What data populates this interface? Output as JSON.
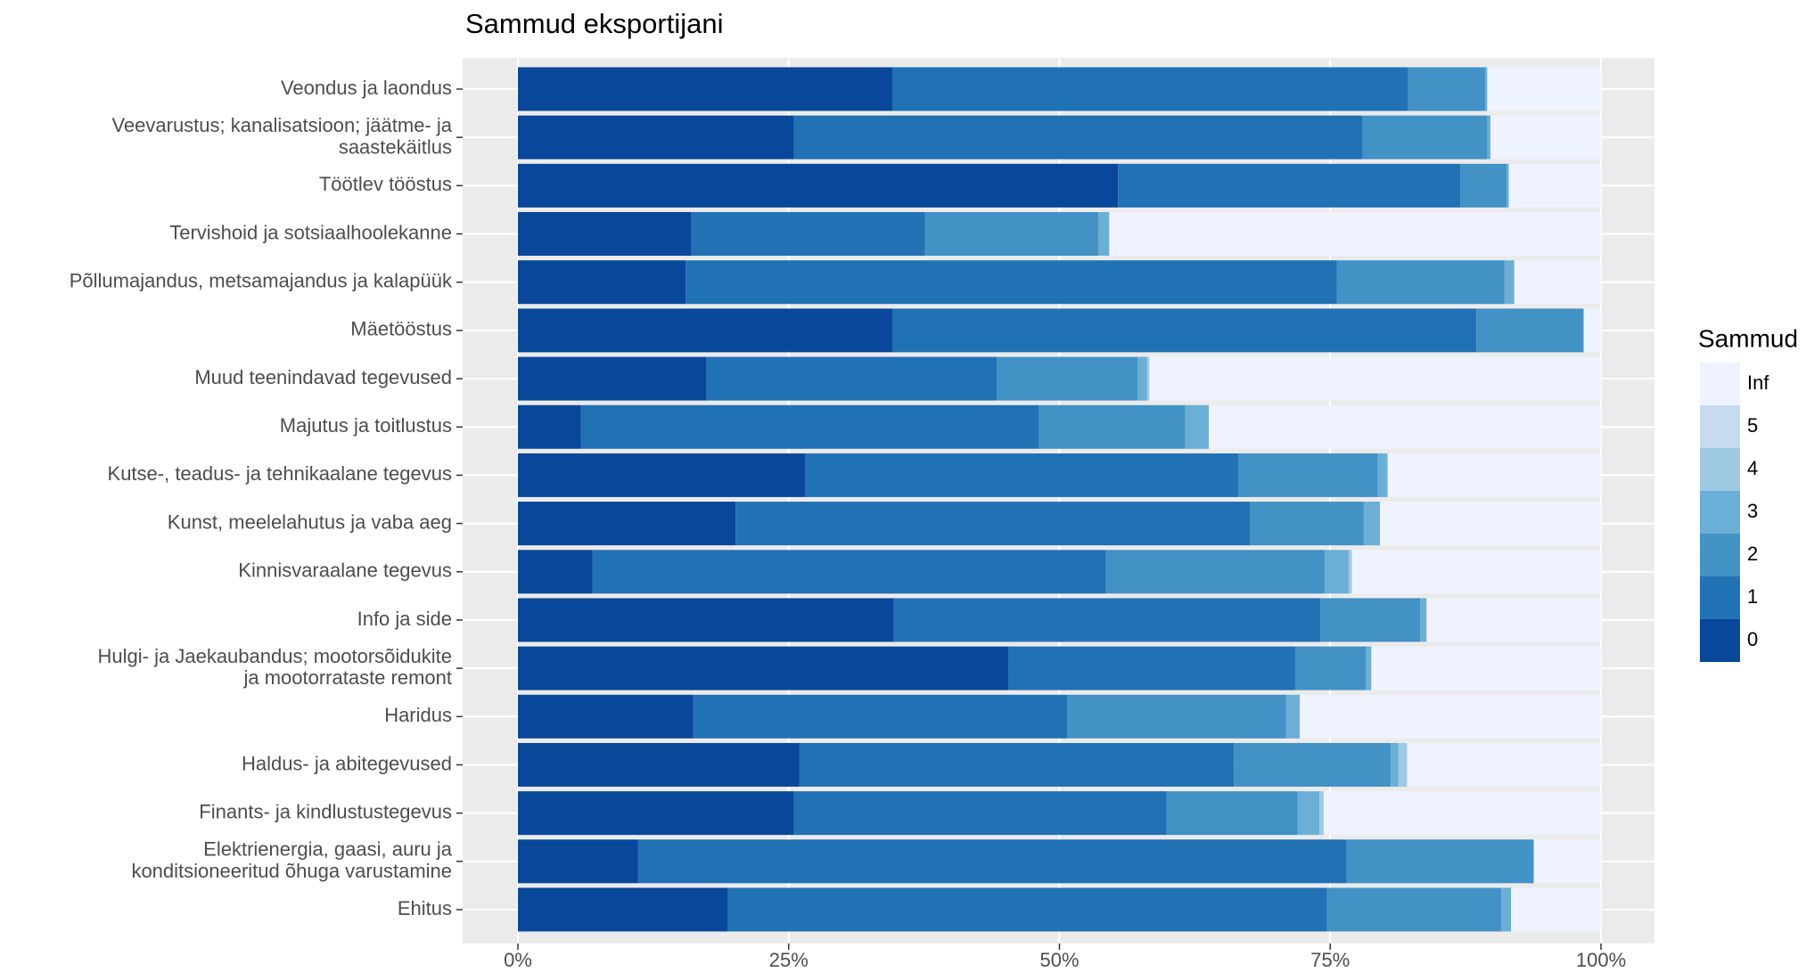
{
  "chart_data": {
    "type": "stacked-barh",
    "title": "Sammud eksportijani",
    "categories": [
      "Veondus ja laondus",
      "Veevarustus; kanalisatsioon; jäätme- ja\nsaastekäitlus",
      "Töötlev tööstus",
      "Tervishoid ja sotsiaalhoolekanne",
      "Põllumajandus, metsamajandus ja kalapüük",
      "Mäetööstus",
      "Muud teenindavad tegevused",
      "Majutus ja toitlustus",
      "Kutse-, teadus- ja tehnikaalane tegevus",
      "Kunst, meelelahutus ja vaba aeg",
      "Kinnisvaraalane tegevus",
      "Info ja side",
      "Hulgi- ja Jaekaubandus; mootorsõidukite\nja mootorrataste remont",
      "Haridus",
      "Haldus- ja abitegevused",
      "Finants- ja kindlustustegevus",
      "Elektrienergia, gaasi, auru ja\nkonditsioneeritud õhuga varustamine",
      "Ehitus"
    ],
    "series": [
      {
        "name": "0",
        "color": "#08479a",
        "values": [
          34.6,
          25.5,
          55.4,
          16.0,
          15.5,
          34.6,
          17.4,
          5.8,
          26.5,
          20.1,
          6.9,
          34.7,
          45.3,
          16.2,
          26.0,
          25.5,
          11.1,
          19.4
        ]
      },
      {
        "name": "1",
        "color": "#2171b5",
        "values": [
          47.6,
          52.5,
          31.6,
          21.6,
          60.1,
          53.9,
          26.8,
          42.3,
          40.0,
          47.5,
          47.4,
          39.4,
          26.5,
          34.5,
          40.1,
          34.4,
          65.4,
          55.3
        ]
      },
      {
        "name": "2",
        "color": "#4292c6",
        "values": [
          7.1,
          11.5,
          4.3,
          16.0,
          15.5,
          9.9,
          13.0,
          13.5,
          12.9,
          10.5,
          20.2,
          9.2,
          6.5,
          20.2,
          14.5,
          12.1,
          17.3,
          16.1
        ]
      },
      {
        "name": "3",
        "color": "#6baed6",
        "values": [
          0.2,
          0.3,
          0.2,
          1.0,
          0.9,
          0,
          0.9,
          2.2,
          0.9,
          1.5,
          2.2,
          0.6,
          0.5,
          1.3,
          0.7,
          2.0,
          0,
          0.9
        ]
      },
      {
        "name": "4",
        "color": "#9ecae1",
        "values": [
          0,
          0,
          0,
          0,
          0,
          0,
          0.2,
          0,
          0,
          0,
          0.3,
          0,
          0,
          0,
          0.8,
          0.4,
          0,
          0
        ]
      },
      {
        "name": "5",
        "color": "#c6dbef",
        "values": [
          0,
          0,
          0,
          0,
          0,
          0,
          0,
          0,
          0,
          0,
          0,
          0,
          0,
          0,
          0,
          0,
          0,
          0
        ]
      },
      {
        "name": "Inf",
        "color": "#eff3ff",
        "values": [
          10.5,
          10.2,
          8.5,
          45.4,
          8.0,
          1.6,
          41.7,
          36.2,
          19.7,
          20.4,
          23.0,
          16.1,
          21.2,
          27.8,
          17.9,
          25.6,
          6.2,
          8.3
        ]
      }
    ],
    "legend_title": "Sammud",
    "xlim": [
      0,
      100
    ],
    "xticks": [
      {
        "value": 0,
        "label": "0%"
      },
      {
        "value": 25,
        "label": "25%"
      },
      {
        "value": 50,
        "label": "50%"
      },
      {
        "value": 75,
        "label": "75%"
      },
      {
        "value": 100,
        "label": "100%"
      }
    ],
    "grid": true,
    "legend": "right"
  }
}
